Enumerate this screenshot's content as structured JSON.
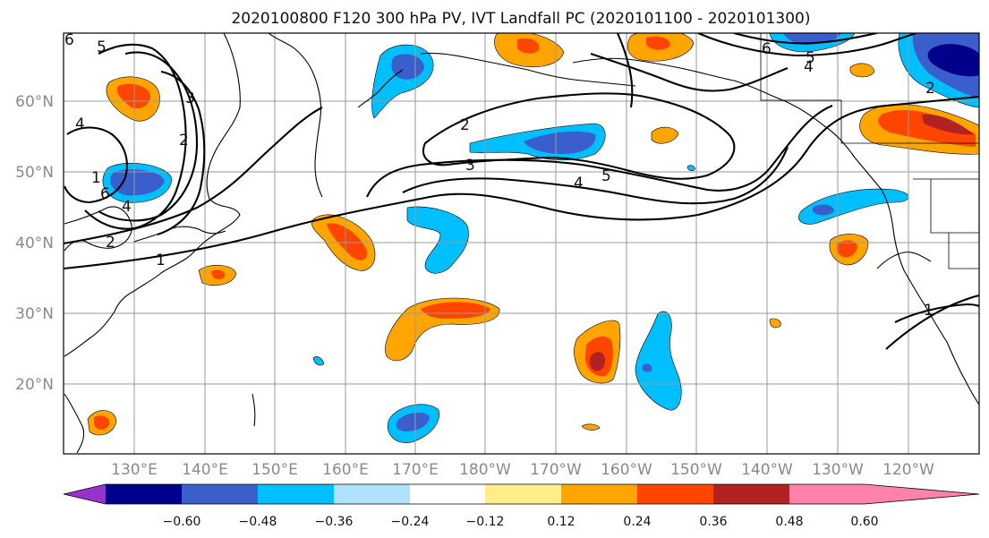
{
  "title": "2020100800 F120 300 hPa PV, IVT Landfall PC (2020101100 - 2020101300)",
  "lat_labels": [
    "60°N",
    "50°N",
    "40°N",
    "30°N",
    "20°N"
  ],
  "lon_labels": [
    "130°E",
    "140°E",
    "150°E",
    "160°E",
    "170°E",
    "180°W",
    "170°W",
    "160°W",
    "150°W",
    "140°W",
    "130°W",
    "120°W"
  ],
  "colorbar": {
    "ticks": [
      "−0.60",
      "−0.48",
      "−0.36",
      "−0.24",
      "−0.12",
      "0.12",
      "0.24",
      "0.36",
      "0.48",
      "0.60"
    ],
    "colors": [
      "#9932cc",
      "#00008b",
      "#3a5fcd",
      "#00bfff",
      "#b0e2ff",
      "#ffffff",
      "#ffec8b",
      "#ffa500",
      "#ff4500",
      "#b22222",
      "#ff82ab"
    ]
  },
  "contour_labels": [
    "5",
    "6",
    "3",
    "4",
    "2",
    "1",
    "6",
    "4",
    "2",
    "1",
    "2",
    "3",
    "4",
    "5",
    "6",
    "5",
    "4",
    "2",
    "1"
  ]
}
